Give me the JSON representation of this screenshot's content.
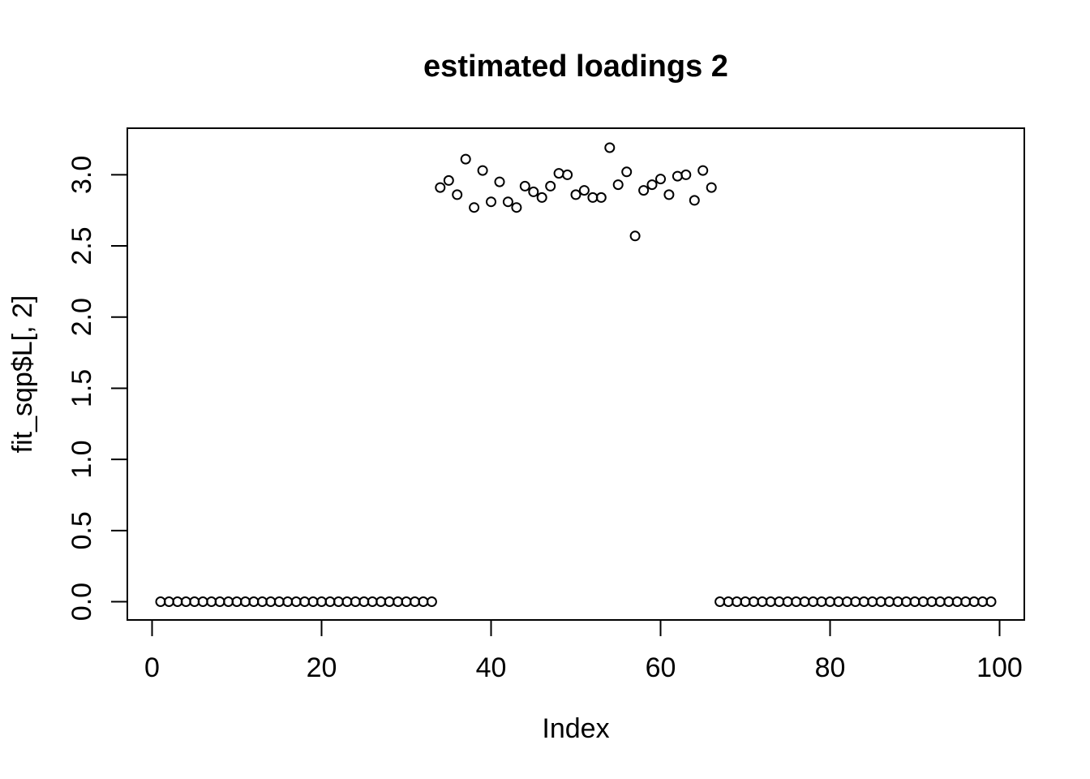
{
  "figure": {
    "background": "#ffffff",
    "foreground": "#000000"
  },
  "chart_data": {
    "type": "scatter",
    "title": "estimated loadings 2",
    "xlabel": "Index",
    "ylabel": "fit_sqp$L[, 2]",
    "marker": "open-circle",
    "marker_color": "#000000",
    "grid": false,
    "xlim": [
      -2.92,
      102.92
    ],
    "ylim": [
      -0.128,
      3.327
    ],
    "xticks": [
      0,
      20,
      40,
      60,
      80,
      100
    ],
    "xtick_labels": [
      "0",
      "20",
      "40",
      "60",
      "80",
      "100"
    ],
    "yticks": [
      0.0,
      0.5,
      1.0,
      1.5,
      2.0,
      2.5,
      3.0
    ],
    "ytick_labels": [
      "0.0",
      "0.5",
      "1.0",
      "1.5",
      "2.0",
      "2.5",
      "3.0"
    ],
    "x": [
      1,
      2,
      3,
      4,
      5,
      6,
      7,
      8,
      9,
      10,
      11,
      12,
      13,
      14,
      15,
      16,
      17,
      18,
      19,
      20,
      21,
      22,
      23,
      24,
      25,
      26,
      27,
      28,
      29,
      30,
      31,
      32,
      33,
      34,
      35,
      36,
      37,
      38,
      39,
      40,
      41,
      42,
      43,
      44,
      45,
      46,
      47,
      48,
      49,
      50,
      51,
      52,
      53,
      54,
      55,
      56,
      57,
      58,
      59,
      60,
      61,
      62,
      63,
      64,
      65,
      66,
      67,
      68,
      69,
      70,
      71,
      72,
      73,
      74,
      75,
      76,
      77,
      78,
      79,
      80,
      81,
      82,
      83,
      84,
      85,
      86,
      87,
      88,
      89,
      90,
      91,
      92,
      93,
      94,
      95,
      96,
      97,
      98,
      99
    ],
    "y": [
      0,
      0,
      0,
      0,
      0,
      0,
      0,
      0,
      0,
      0,
      0,
      0,
      0,
      0,
      0,
      0,
      0,
      0,
      0,
      0,
      0,
      0,
      0,
      0,
      0,
      0,
      0,
      0,
      0,
      0,
      0,
      0,
      0,
      2.91,
      2.96,
      2.86,
      3.11,
      2.77,
      3.03,
      2.81,
      2.95,
      2.81,
      2.77,
      2.92,
      2.88,
      2.84,
      2.92,
      3.01,
      3.0,
      2.86,
      2.89,
      2.84,
      2.84,
      3.19,
      2.93,
      3.02,
      2.57,
      2.89,
      2.93,
      2.97,
      2.86,
      2.99,
      3.0,
      2.82,
      3.03,
      2.91,
      0,
      0,
      0,
      0,
      0,
      0,
      0,
      0,
      0,
      0,
      0,
      0,
      0,
      0,
      0,
      0,
      0,
      0,
      0,
      0,
      0,
      0,
      0,
      0,
      0,
      0,
      0,
      0,
      0,
      0,
      0,
      0,
      0
    ]
  }
}
